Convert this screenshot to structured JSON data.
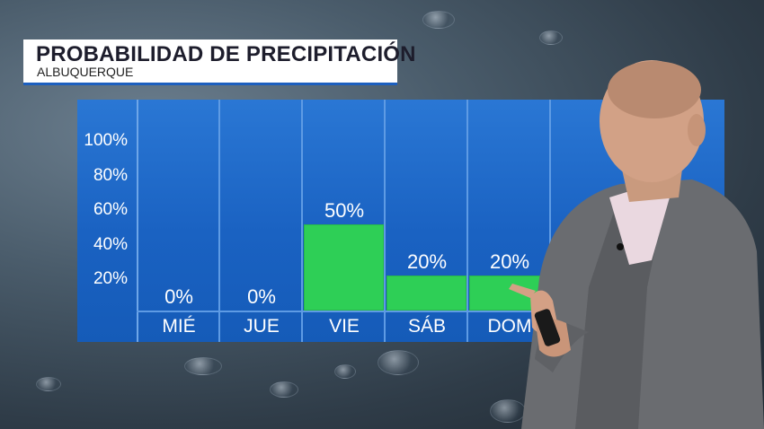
{
  "header": {
    "title": "PROBABILIDAD DE PRECIPITACIÓN",
    "location": "ALBUQUERQUE"
  },
  "colors": {
    "panel_blue": "#1a62c2",
    "bar_green": "#2ecf56",
    "title_underline": "#1c5fbf"
  },
  "chart_data": {
    "type": "bar",
    "title": "PROBABILIDAD DE PRECIPITACIÓN",
    "subtitle": "ALBUQUERQUE",
    "categories": [
      "MIÉ",
      "JUE",
      "VIE",
      "SÁB",
      "DOM"
    ],
    "values": [
      0,
      0,
      50,
      20,
      20
    ],
    "value_labels": [
      "0%",
      "0%",
      "50%",
      "20%",
      "20%"
    ],
    "yticks": [
      "100%",
      "80%",
      "60%",
      "40%",
      "20%"
    ],
    "ylim": [
      0,
      100
    ],
    "unit": "%",
    "grid": "vertical-columns",
    "legend": "none"
  },
  "presenter": {
    "icon": "presenter-figure"
  }
}
